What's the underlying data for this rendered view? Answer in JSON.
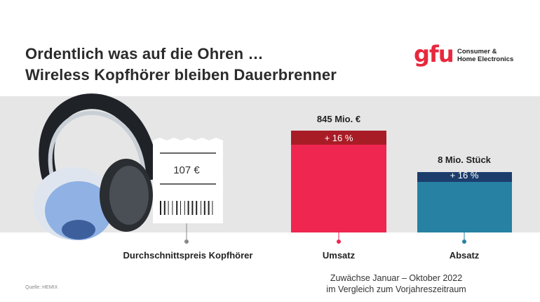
{
  "title_line1": "Ordentlich was auf die Ohren …",
  "title_line2": "Wireless Kopfhörer bleiben Dauerbrenner",
  "logo": {
    "wordmark": "gfu",
    "line1": "Consumer &",
    "line2": "Home Electronics"
  },
  "receipt": {
    "price": "107 €",
    "label": "Durchschnittspreis Kopfhörer"
  },
  "note_line1": "Zuwächse Januar – Oktober 2022",
  "note_line2": "im Vergleich zum Vorjahreszeitraum",
  "source": "Quelle: HEMIX",
  "colors": {
    "umsatz": "#ee2650",
    "umsatz_growth": "#a81c25",
    "absatz": "#2681a2",
    "absatz_growth": "#1c3d6c",
    "band": "#e6e6e6",
    "brand": "#e8283d"
  },
  "chart_data": {
    "type": "bar",
    "categories": [
      "Umsatz",
      "Absatz"
    ],
    "bars": [
      {
        "category": "Umsatz",
        "value_label": "845 Mio. €",
        "growth_label": "+ 16 %",
        "growth_pct": 16
      },
      {
        "category": "Absatz",
        "value_label": "8 Mio. Stück",
        "growth_label": "+ 16 %",
        "growth_pct": 16
      }
    ]
  }
}
